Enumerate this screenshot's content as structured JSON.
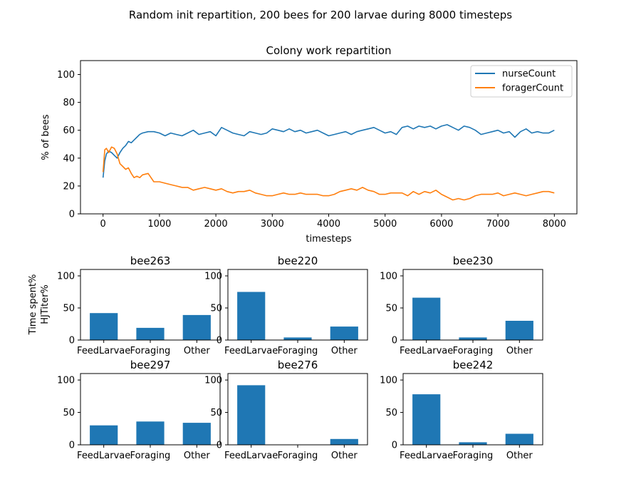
{
  "figure": {
    "suptitle": "Random init repartition, 200 bees for 200 larvae during 8000 timesteps",
    "shared_ylabel_lines": [
      "Time spent%",
      "HJTiter%"
    ]
  },
  "colors": {
    "nurse": "#1f77b4",
    "forager": "#ff7f0e",
    "bar": "#1f77b4"
  },
  "chart_data": [
    {
      "type": "line",
      "title": "Colony work repartition",
      "xlabel": "timesteps",
      "ylabel": "% of bees",
      "xlim": [
        -400,
        8400
      ],
      "ylim": [
        0,
        110
      ],
      "xticks": [
        0,
        1000,
        2000,
        3000,
        4000,
        5000,
        6000,
        7000,
        8000
      ],
      "yticks": [
        0,
        20,
        40,
        60,
        80,
        100
      ],
      "legend_position": "upper-right",
      "grid": false,
      "series": [
        {
          "name": "nurseCount",
          "x": [
            0,
            30,
            60,
            100,
            150,
            200,
            250,
            300,
            350,
            400,
            450,
            500,
            550,
            600,
            650,
            700,
            800,
            900,
            1000,
            1100,
            1200,
            1300,
            1400,
            1500,
            1600,
            1700,
            1800,
            1900,
            2000,
            2100,
            2200,
            2300,
            2400,
            2500,
            2600,
            2700,
            2800,
            2900,
            3000,
            3100,
            3200,
            3300,
            3400,
            3500,
            3600,
            3700,
            3800,
            3900,
            4000,
            4100,
            4200,
            4300,
            4400,
            4500,
            4600,
            4700,
            4800,
            4900,
            5000,
            5100,
            5200,
            5300,
            5400,
            5500,
            5600,
            5700,
            5800,
            5900,
            6000,
            6100,
            6200,
            6300,
            6400,
            6500,
            6600,
            6700,
            6800,
            6900,
            7000,
            7100,
            7200,
            7300,
            7400,
            7500,
            7600,
            7700,
            7800,
            7900,
            8000
          ],
          "y": [
            26,
            38,
            43,
            45,
            44,
            42,
            40,
            44,
            47,
            49,
            52,
            51,
            53,
            55,
            57,
            58,
            59,
            59,
            58,
            56,
            58,
            57,
            56,
            58,
            60,
            57,
            58,
            59,
            56,
            62,
            60,
            58,
            57,
            56,
            59,
            58,
            57,
            58,
            61,
            60,
            59,
            61,
            59,
            60,
            58,
            59,
            60,
            58,
            56,
            57,
            58,
            59,
            57,
            59,
            60,
            61,
            62,
            60,
            58,
            59,
            57,
            62,
            63,
            61,
            63,
            62,
            63,
            61,
            63,
            64,
            62,
            60,
            63,
            62,
            60,
            57,
            58,
            59,
            60,
            58,
            59,
            55,
            59,
            61,
            58,
            59,
            58,
            58,
            60
          ]
        },
        {
          "name": "foragerCount",
          "x": [
            0,
            30,
            60,
            100,
            150,
            200,
            250,
            300,
            350,
            400,
            450,
            500,
            550,
            600,
            650,
            700,
            800,
            900,
            1000,
            1100,
            1200,
            1300,
            1400,
            1500,
            1600,
            1700,
            1800,
            1900,
            2000,
            2100,
            2200,
            2300,
            2400,
            2500,
            2600,
            2700,
            2800,
            2900,
            3000,
            3100,
            3200,
            3300,
            3400,
            3500,
            3600,
            3700,
            3800,
            3900,
            4000,
            4100,
            4200,
            4300,
            4400,
            4500,
            4600,
            4700,
            4800,
            4900,
            5000,
            5100,
            5200,
            5300,
            5400,
            5500,
            5600,
            5700,
            5800,
            5900,
            6000,
            6100,
            6200,
            6300,
            6400,
            6500,
            6600,
            6700,
            6800,
            6900,
            7000,
            7100,
            7200,
            7300,
            7400,
            7500,
            7600,
            7700,
            7800,
            7900,
            8000
          ],
          "y": [
            30,
            46,
            47,
            44,
            48,
            47,
            43,
            36,
            34,
            32,
            33,
            29,
            26,
            27,
            26,
            28,
            29,
            23,
            23,
            22,
            21,
            20,
            19,
            19,
            17,
            18,
            19,
            18,
            17,
            18,
            16,
            15,
            16,
            16,
            17,
            15,
            14,
            13,
            13,
            14,
            15,
            14,
            14,
            15,
            14,
            14,
            14,
            13,
            13,
            14,
            16,
            17,
            18,
            17,
            19,
            17,
            16,
            14,
            14,
            15,
            15,
            15,
            13,
            16,
            14,
            16,
            15,
            17,
            14,
            12,
            10,
            11,
            10,
            11,
            13,
            14,
            14,
            14,
            15,
            13,
            14,
            15,
            14,
            13,
            14,
            15,
            16,
            16,
            15
          ]
        }
      ]
    },
    {
      "type": "bar",
      "title": "bee263",
      "categories": [
        "FeedLarvae",
        "Foraging",
        "Other"
      ],
      "values": [
        42,
        19,
        39
      ],
      "ylim": [
        0,
        110
      ],
      "yticks": [
        0,
        50,
        100
      ]
    },
    {
      "type": "bar",
      "title": "bee220",
      "categories": [
        "FeedLarvae",
        "Foraging",
        "Other"
      ],
      "values": [
        75,
        4,
        21
      ],
      "ylim": [
        0,
        110
      ],
      "yticks": [
        0,
        50,
        100
      ]
    },
    {
      "type": "bar",
      "title": "bee230",
      "categories": [
        "FeedLarvae",
        "Foraging",
        "Other"
      ],
      "values": [
        66,
        4,
        30
      ],
      "ylim": [
        0,
        110
      ],
      "yticks": [
        0,
        50,
        100
      ]
    },
    {
      "type": "bar",
      "title": "bee297",
      "categories": [
        "FeedLarvae",
        "Foraging",
        "Other"
      ],
      "values": [
        30,
        36,
        34
      ],
      "ylim": [
        0,
        110
      ],
      "yticks": [
        0,
        50,
        100
      ]
    },
    {
      "type": "bar",
      "title": "bee276",
      "categories": [
        "FeedLarvae",
        "Foraging",
        "Other"
      ],
      "values": [
        92,
        0,
        9
      ],
      "ylim": [
        0,
        110
      ],
      "yticks": [
        0,
        50,
        100
      ]
    },
    {
      "type": "bar",
      "title": "bee242",
      "categories": [
        "FeedLarvae",
        "Foraging",
        "Other"
      ],
      "values": [
        78,
        4,
        17
      ],
      "ylim": [
        0,
        110
      ],
      "yticks": [
        0,
        50,
        100
      ]
    }
  ]
}
